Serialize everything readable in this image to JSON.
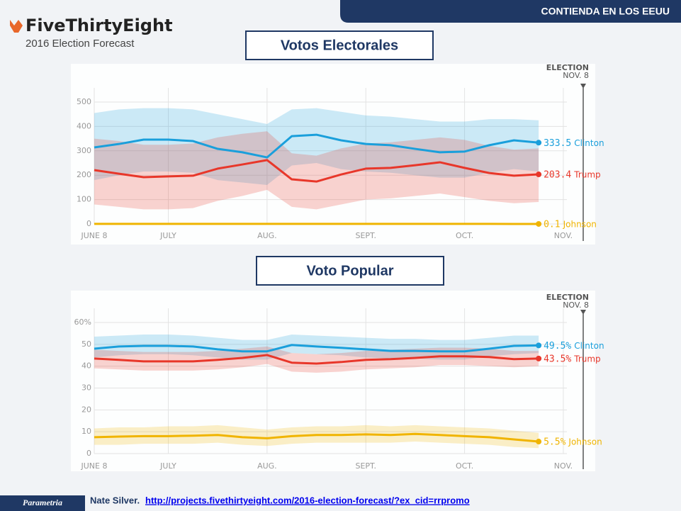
{
  "header": "CONTIENDA EN LOS EEUU",
  "logo": {
    "name": "FiveThirtyEight",
    "subtitle": "2016 Election Forecast"
  },
  "footer": {
    "brand": "Parametria",
    "author": "Nate Silver.",
    "url": "http://projects.fivethirtyeight.com/2016-election-forecast/?ex_cid=rrpromo"
  },
  "chart_data": [
    {
      "type": "line",
      "title": "Votos Electorales",
      "annotation": [
        "ELECTION",
        "NOV. 8"
      ],
      "categories": [
        "JUNE 8",
        null,
        null,
        "JULY",
        null,
        null,
        null,
        "AUG.",
        null,
        null,
        null,
        "SEPT.",
        null,
        null,
        null,
        "OCT.",
        null,
        null,
        null,
        "NOV."
      ],
      "ylim": [
        0,
        500
      ],
      "yticks": [
        0,
        100,
        200,
        300,
        400,
        500
      ],
      "grid": true,
      "series": [
        {
          "name": "Clinton",
          "color": "#1a9fdb",
          "values": [
            314,
            328,
            346,
            346,
            340,
            308,
            294,
            273,
            360,
            366,
            343,
            328,
            323,
            308,
            294,
            297,
            323,
            343,
            333.5,
            null
          ],
          "high": [
            455,
            470,
            475,
            475,
            470,
            450,
            430,
            410,
            470,
            475,
            460,
            445,
            440,
            430,
            420,
            420,
            430,
            430,
            425,
            null
          ],
          "low": [
            180,
            200,
            215,
            215,
            210,
            180,
            170,
            160,
            240,
            250,
            225,
            215,
            210,
            200,
            190,
            190,
            210,
            225,
            215,
            null
          ]
        },
        {
          "name": "Trump",
          "color": "#e8372a",
          "values": [
            221,
            206,
            192,
            195,
            198,
            227,
            244,
            262,
            183,
            174,
            203,
            227,
            230,
            241,
            253,
            230,
            209,
            198,
            203.4,
            null
          ],
          "high": [
            350,
            340,
            325,
            325,
            330,
            355,
            370,
            380,
            290,
            280,
            310,
            330,
            335,
            345,
            355,
            345,
            320,
            305,
            310,
            null
          ],
          "low": [
            80,
            70,
            60,
            60,
            65,
            95,
            115,
            140,
            70,
            60,
            80,
            100,
            105,
            115,
            125,
            110,
            95,
            85,
            90,
            null
          ]
        },
        {
          "name": "Johnson",
          "color": "#f0b400",
          "values": [
            0.3,
            0.3,
            0.3,
            0.3,
            0.3,
            0.3,
            0.3,
            0.3,
            0.3,
            0.3,
            0.3,
            0.3,
            0.3,
            0.3,
            0.3,
            0.2,
            0.2,
            0.1,
            0.1,
            null
          ]
        }
      ]
    },
    {
      "type": "line",
      "title": "Voto Popular",
      "annotation": [
        "ELECTION",
        "NOV. 8"
      ],
      "categories": [
        "JUNE 8",
        null,
        null,
        "JULY",
        null,
        null,
        null,
        "AUG.",
        null,
        null,
        null,
        "SEPT.",
        null,
        null,
        null,
        "OCT.",
        null,
        null,
        null,
        "NOV."
      ],
      "ylim": [
        0,
        60
      ],
      "yticks": [
        0,
        10,
        20,
        30,
        40,
        50,
        {
          "value": 60,
          "label": "60%"
        }
      ],
      "grid": true,
      "series": [
        {
          "name": "Clinton",
          "color": "#1a9fdb",
          "values": [
            48,
            49,
            49.3,
            49.3,
            49,
            47.7,
            46.8,
            46.8,
            49.7,
            49,
            48.4,
            47.7,
            47,
            47,
            46.8,
            46.8,
            48,
            49.3,
            49.5,
            null
          ],
          "value_labels": [
            null,
            null,
            null,
            null,
            null,
            null,
            null,
            null,
            null,
            null,
            null,
            null,
            null,
            null,
            null,
            null,
            null,
            null,
            "49.5%",
            null
          ],
          "high": [
            53.5,
            54,
            54.5,
            54.5,
            54,
            53,
            52,
            52,
            54.5,
            54,
            53.5,
            53,
            52.5,
            52.5,
            52,
            52,
            53,
            54,
            54,
            null
          ],
          "low": [
            44,
            45,
            45.5,
            45.5,
            45,
            44,
            43,
            43,
            46,
            45.5,
            45,
            44,
            43.5,
            43.5,
            43,
            43,
            44.5,
            45.5,
            46,
            null
          ]
        },
        {
          "name": "Trump",
          "color": "#e8372a",
          "values": [
            43.5,
            42.9,
            42.2,
            42.2,
            42.2,
            42.9,
            43.8,
            45.1,
            41.6,
            41.2,
            41.9,
            42.9,
            43.2,
            43.8,
            44.5,
            44.5,
            44.2,
            43.2,
            43.5,
            null
          ],
          "value_labels": [
            null,
            null,
            null,
            null,
            null,
            null,
            null,
            null,
            null,
            null,
            null,
            null,
            null,
            null,
            null,
            null,
            null,
            null,
            "43.5%",
            null
          ],
          "high": [
            47.5,
            47,
            46.5,
            46.5,
            46.5,
            47,
            48,
            49,
            46,
            45.5,
            46,
            47,
            47.5,
            48,
            48.5,
            48.5,
            48,
            47,
            47,
            null
          ],
          "low": [
            39,
            38.5,
            38,
            38,
            38,
            38.5,
            39.5,
            41,
            37.5,
            37,
            37.5,
            38.5,
            39,
            39.5,
            40.5,
            40.5,
            40,
            39.5,
            40,
            null
          ]
        },
        {
          "name": "Johnson",
          "color": "#f0b400",
          "values": [
            7.5,
            7.8,
            8,
            8,
            8.2,
            8.5,
            7.5,
            7,
            8,
            8.5,
            8.5,
            8.8,
            8.5,
            9,
            8.5,
            8,
            7.5,
            6.5,
            5.5,
            null
          ],
          "value_labels": [
            null,
            null,
            null,
            null,
            null,
            null,
            null,
            null,
            null,
            null,
            null,
            null,
            null,
            null,
            null,
            null,
            null,
            null,
            "5.5%",
            null
          ],
          "high": [
            11.5,
            12,
            12,
            12.5,
            12.5,
            13,
            12,
            11,
            12,
            12.5,
            12.5,
            13,
            12.5,
            13,
            12.5,
            12,
            11.5,
            10.5,
            9.5,
            null
          ],
          "low": [
            4,
            4,
            4.5,
            4.5,
            4.5,
            5,
            4,
            3.5,
            4.5,
            5,
            5,
            5,
            5,
            5.5,
            5,
            4.5,
            4,
            3,
            2.5,
            null
          ]
        }
      ]
    }
  ]
}
